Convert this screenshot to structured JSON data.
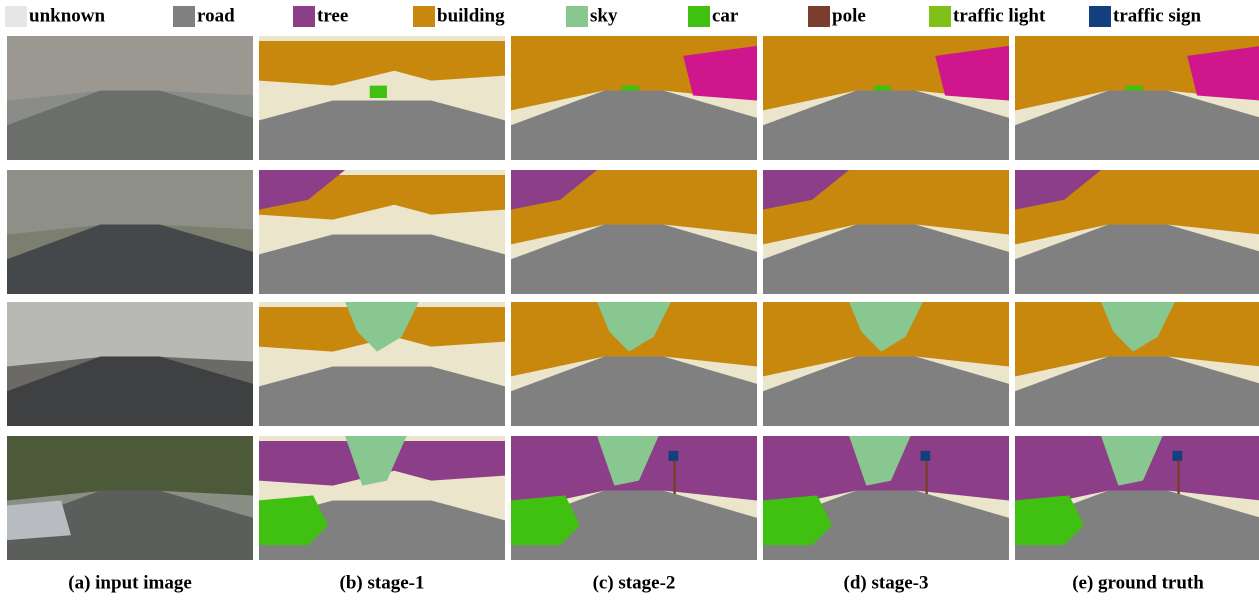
{
  "legend": [
    {
      "label": "unknown",
      "color": "#e6e6e6"
    },
    {
      "label": "road",
      "color": "#808080"
    },
    {
      "label": "tree",
      "color": "#8c3f88"
    },
    {
      "label": "building",
      "color": "#c8880e"
    },
    {
      "label": "sky",
      "color": "#88c890"
    },
    {
      "label": "car",
      "color": "#40c010"
    },
    {
      "label": "pole",
      "color": "#7a3e2e"
    },
    {
      "label": "traffic light",
      "color": "#80c018"
    },
    {
      "label": "traffic sign",
      "color": "#12407c"
    }
  ],
  "captions": [
    "(a) input image",
    "(b) stage-1",
    "(c) stage-2",
    "(d) stage-3",
    "(e) ground truth"
  ]
}
